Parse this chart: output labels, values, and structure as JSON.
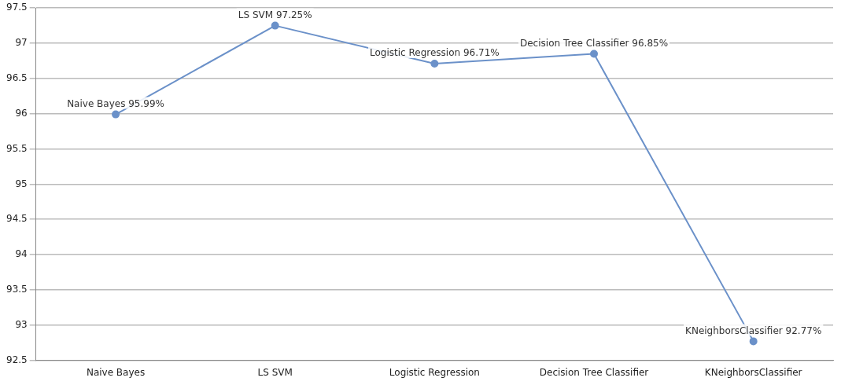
{
  "chart_data": {
    "type": "line",
    "categories": [
      "Naive Bayes",
      "LS SVM",
      "Logistic Regression",
      "Decision Tree Classifier",
      "KNeighborsClassifier"
    ],
    "series": [
      {
        "color": "#6b91c9",
        "values": [
          95.99,
          97.25,
          96.71,
          96.85,
          92.77
        ],
        "value_labels": [
          "Naive Bayes 95.99%",
          "LS SVM 97.25%",
          "Logistic Regression 96.71%",
          "Decision Tree Classifier 96.85%",
          "KNeighborsClassifier 92.77%"
        ]
      }
    ],
    "ylim": [
      92.5,
      97.5
    ],
    "yticks": [
      92.5,
      93,
      93.5,
      94,
      94.5,
      95,
      95.5,
      96,
      96.5,
      97,
      97.5
    ],
    "grid": "y",
    "marker": "circle",
    "line_style": "solid",
    "legend": false
  }
}
